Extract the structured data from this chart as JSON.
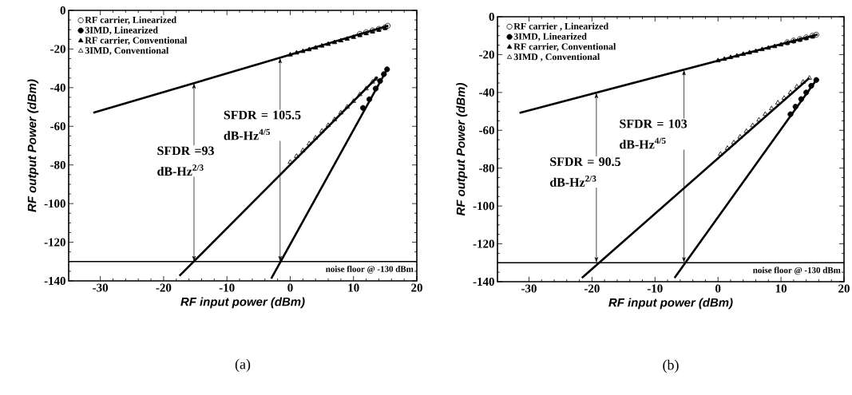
{
  "chart_data": [
    {
      "type": "scatter",
      "xlabel": "RF input power (dBm)",
      "ylabel": "RF output Power (dBm)",
      "xlim": [
        -35,
        20
      ],
      "xticks": [
        -30,
        -20,
        -10,
        0,
        10,
        20
      ],
      "ylim": [
        -140,
        0
      ],
      "yticks": [
        -140,
        -120,
        -100,
        -80,
        -60,
        -40,
        -20,
        0
      ],
      "legend": "top left",
      "series": [
        {
          "name": "RF carrier, Linearized",
          "type": "scatter",
          "marker": "circle-open",
          "color": "#000000",
          "x": [
            11,
            12,
            13,
            14,
            15,
            15.4
          ],
          "values": [
            -12.2,
            -11.3,
            -10.4,
            -9.6,
            -8.8,
            -8
          ]
        },
        {
          "name": "3IMD, Linearized",
          "type": "scatter",
          "marker": "circle",
          "color": "#000000",
          "x": [
            11.5,
            12.5,
            13.5,
            14.2,
            14.8,
            15.3
          ],
          "values": [
            -50.5,
            -46,
            -40.5,
            -36.5,
            -33,
            -30.5
          ]
        },
        {
          "name": "RF carrier, Conventional",
          "type": "scatter",
          "marker": "triangle",
          "color": "#000000",
          "x": [
            0,
            1,
            2,
            3,
            4,
            5,
            6,
            7,
            8,
            9,
            10,
            11,
            12,
            13,
            14,
            15
          ],
          "values": [
            -23,
            -22,
            -21.2,
            -20.3,
            -19.4,
            -18.4,
            -17.5,
            -16.6,
            -15.7,
            -14.8,
            -13.9,
            -13,
            -12,
            -11.1,
            -10.2,
            -9.3
          ]
        },
        {
          "name": "3IMD, Conventional",
          "type": "scatter",
          "marker": "triangle-open",
          "color": "#000000",
          "x": [
            0,
            1,
            2,
            3,
            4,
            5,
            6,
            7,
            8,
            9,
            10,
            11,
            12,
            13,
            13.5
          ],
          "values": [
            -78.5,
            -75.5,
            -72.5,
            -69,
            -66,
            -62.5,
            -59.5,
            -56.5,
            -53,
            -50,
            -47,
            -43.5,
            -40.5,
            -37,
            -35.5
          ]
        },
        {
          "type": "line",
          "color": "#000000",
          "x": [
            -31.1,
            15.5
          ],
          "values": [
            -53,
            -8
          ]
        },
        {
          "type": "line",
          "color": "#000000",
          "x": [
            -17.5,
            13.8
          ],
          "values": [
            -137.4,
            -34.5
          ]
        },
        {
          "type": "line",
          "color": "#000000",
          "x": [
            -3,
            15.3
          ],
          "values": [
            -138.8,
            -30.5
          ]
        }
      ],
      "ref_lines": [
        {
          "axis": "y",
          "value": -130,
          "label": "noise floor @ -130 dBm"
        }
      ],
      "annotations": [
        {
          "text": "SFDR =93 dB-Hz$^{2/3}$",
          "x": -15.2,
          "y": -37.6
        },
        {
          "text": "SFDR = 105.5 dB-Hz$^{4/5}$",
          "x": -1.6,
          "y": -24.5
        },
        "(a)"
      ]
    },
    {
      "type": "scatter",
      "xlabel": "RF input power (dBm)",
      "ylabel": "RF output Power (dBm)",
      "xlim": [
        -35,
        20
      ],
      "xticks": [
        -30,
        -20,
        -10,
        0,
        10,
        20
      ],
      "ylim": [
        -140,
        0
      ],
      "yticks": [
        -140,
        -120,
        -100,
        -80,
        -60,
        -40,
        -20,
        0
      ],
      "legend": "top left",
      "series": [
        {
          "name": "RF carrier , Linearized",
          "type": "scatter",
          "marker": "circle-open",
          "color": "#000000",
          "x": [
            11,
            12,
            13,
            14,
            15,
            15.6
          ],
          "values": [
            -13.5,
            -12.6,
            -11.8,
            -10.9,
            -10,
            -9.5
          ]
        },
        {
          "name": "3IMD, Linearized",
          "type": "scatter",
          "marker": "circle",
          "color": "#000000",
          "x": [
            11.5,
            12.3,
            13.2,
            14,
            14.8,
            15.6
          ],
          "values": [
            -51.5,
            -47.5,
            -43.5,
            -40,
            -36.5,
            -33.4
          ]
        },
        {
          "name": "RF carrier, Conventional",
          "type": "scatter",
          "marker": "triangle",
          "color": "#000000",
          "x": [
            0,
            1,
            2,
            3,
            4,
            5,
            6,
            7,
            8,
            9,
            10,
            11,
            12,
            13,
            14,
            15
          ],
          "values": [
            -23.2,
            -22.4,
            -21.5,
            -20.7,
            -19.8,
            -19,
            -18.2,
            -17.3,
            -16.5,
            -15.7,
            -14.8,
            -14,
            -13.1,
            -12.3,
            -11.5,
            -10.6
          ]
        },
        {
          "name": "3IMD , Conventional",
          "type": "scatter",
          "marker": "triangle-open",
          "color": "#000000",
          "x": [
            0.4,
            1.5,
            2.5,
            3.5,
            4.5,
            5.5,
            6.5,
            7.5,
            8.5,
            9.5,
            10.5,
            11.5,
            12.5,
            13.5,
            14.5
          ],
          "values": [
            -72.6,
            -69.5,
            -66.5,
            -63.5,
            -60.5,
            -57.5,
            -54.5,
            -51.5,
            -48.5,
            -45.5,
            -43,
            -40,
            -37,
            -34.5,
            -32.4
          ]
        },
        {
          "type": "line",
          "color": "#000000",
          "x": [
            -31.5,
            15.8
          ],
          "values": [
            -50.8,
            -9.4
          ]
        },
        {
          "type": "line",
          "color": "#000000",
          "x": [
            -21.6,
            14.5
          ],
          "values": [
            -138,
            -32.4
          ]
        },
        {
          "type": "line",
          "color": "#000000",
          "x": [
            -6.9,
            15.6
          ],
          "values": [
            -138,
            -33.4
          ]
        }
      ],
      "ref_lines": [
        {
          "axis": "y",
          "value": -130,
          "label": "noise floor @ -130 dBm"
        }
      ],
      "annotations": [
        {
          "text": "SFDR = 90.5 dB-Hz$^{2/3}$",
          "x": -19.3,
          "y": -40.1
        },
        {
          "text": "SFDR = 103 dB-Hz$^{4/5}$",
          "x": -5.4,
          "y": -28
        },
        "(b)"
      ]
    }
  ]
}
